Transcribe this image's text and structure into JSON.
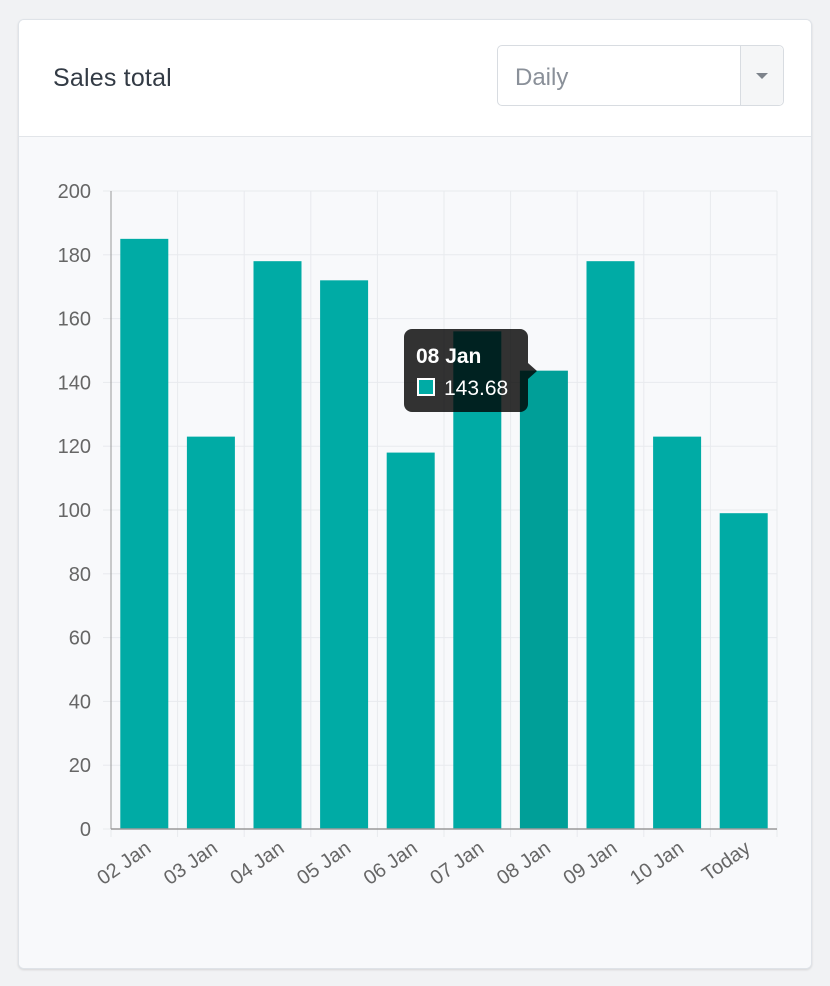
{
  "card": {
    "title": "Sales total",
    "period_select": {
      "value": "Daily"
    }
  },
  "tooltip": {
    "title": "08 Jan",
    "value": "143.68"
  },
  "chart_data": {
    "type": "bar",
    "categories": [
      "02 Jan",
      "03 Jan",
      "04 Jan",
      "05 Jan",
      "06 Jan",
      "07 Jan",
      "08 Jan",
      "09 Jan",
      "10 Jan",
      "Today"
    ],
    "values": [
      185,
      123,
      178,
      172,
      118,
      156,
      143.68,
      178,
      123,
      99
    ],
    "ylim": [
      0,
      200
    ],
    "yticks": [
      0,
      20,
      40,
      60,
      80,
      100,
      120,
      140,
      160,
      180,
      200
    ],
    "grid": true,
    "colors": {
      "bar": "#00aba5",
      "bar_hover": "#009f98",
      "grid": "#e8eaee",
      "axis": "#999999"
    },
    "highlighted_index": 6
  }
}
